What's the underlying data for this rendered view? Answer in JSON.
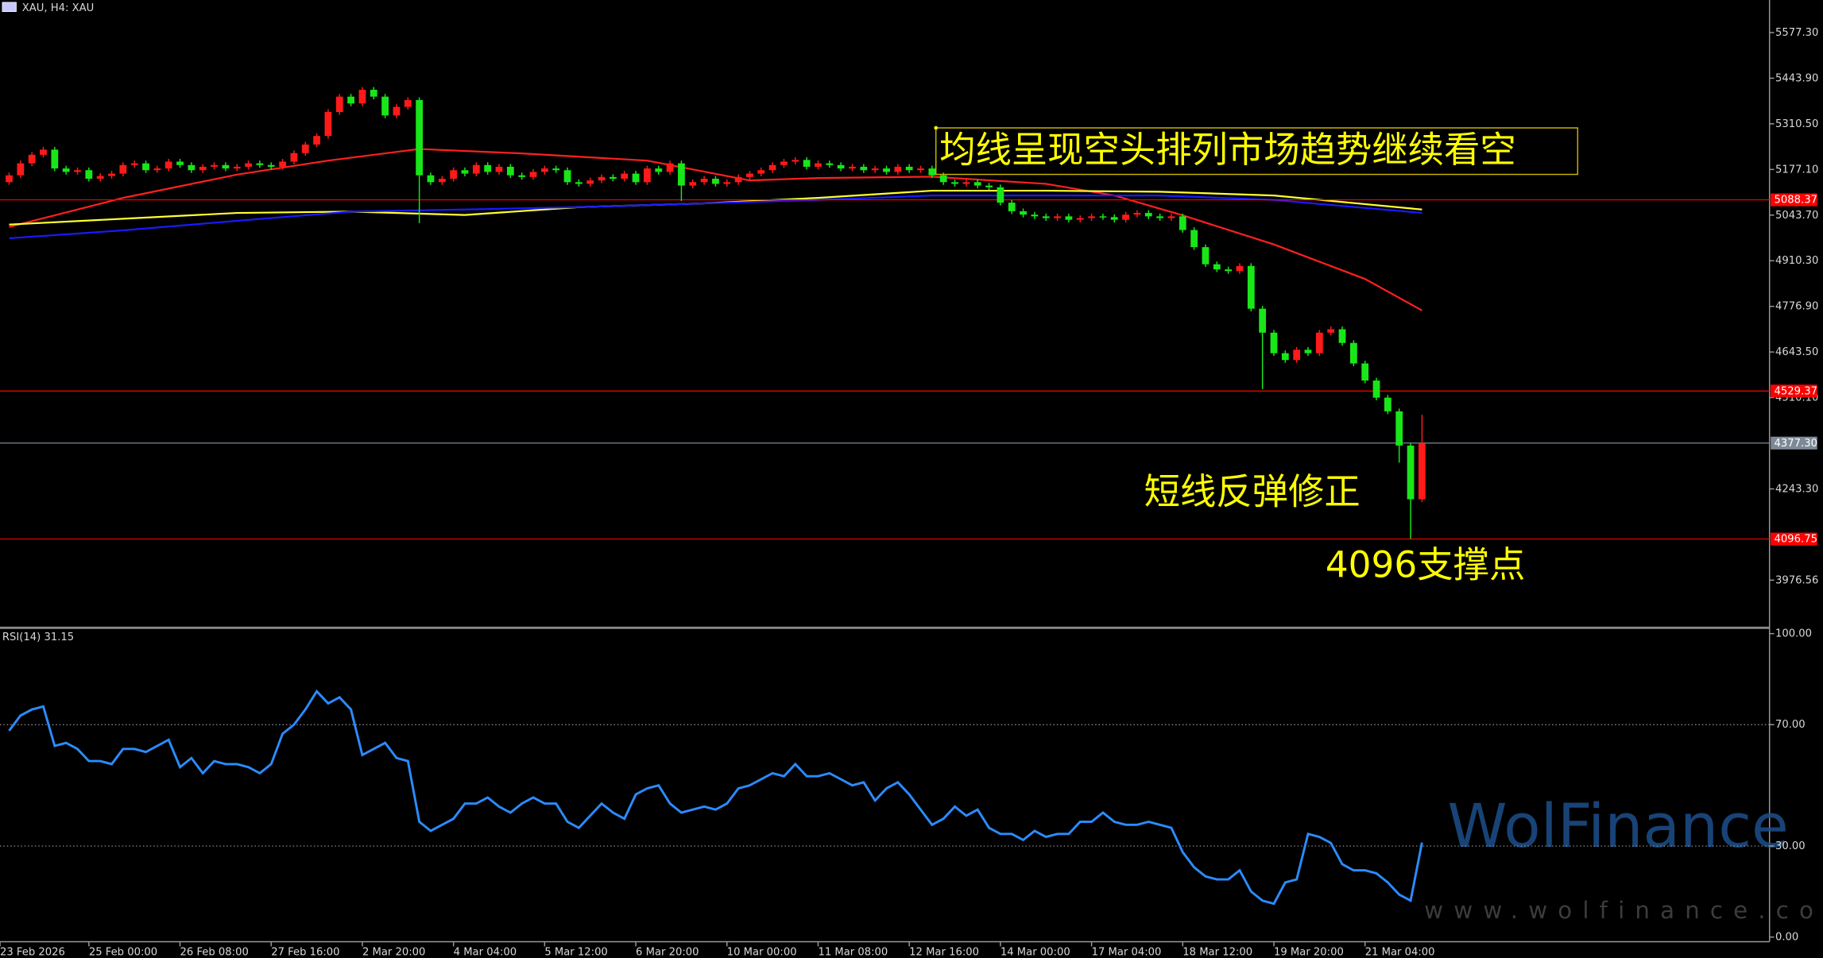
{
  "chart_data": [
    {
      "type": "candlestick",
      "title": "XAU, H4: XAU",
      "up_color": "#ff1a1a",
      "down_color": "#19e619",
      "open": [
        5140,
        5160,
        5195,
        5220,
        5235,
        5180,
        5170,
        5175,
        5150,
        5158,
        5165,
        5190,
        5195,
        5175,
        5180,
        5200,
        5190,
        5175,
        5185,
        5190,
        5180,
        5185,
        5195,
        5190,
        5185,
        5200,
        5225,
        5250,
        5275,
        5345,
        5390,
        5370,
        5410,
        5390,
        5335,
        5360,
        5380,
        5160,
        5140,
        5150,
        5175,
        5165,
        5190,
        5170,
        5185,
        5160,
        5155,
        5170,
        5180,
        5175,
        5140,
        5135,
        5145,
        5155,
        5150,
        5165,
        5140,
        5180,
        5170,
        5195,
        5130,
        5140,
        5150,
        5135,
        5140,
        5155,
        5165,
        5175,
        5190,
        5200,
        5205,
        5185,
        5195,
        5190,
        5180,
        5185,
        5175,
        5180,
        5170,
        5185,
        5175,
        5180,
        5160,
        5140,
        5135,
        5140,
        5130,
        5125,
        5080,
        5055,
        5045,
        5040,
        5035,
        5040,
        5030,
        5035,
        5040,
        5038,
        5030,
        5045,
        5050,
        5040,
        5035,
        5040,
        5000,
        4950,
        4900,
        4885,
        4880,
        4895,
        4770,
        4700,
        4640,
        4620,
        4650,
        4640,
        4700,
        4710,
        4670,
        4610,
        4560,
        4510,
        4470,
        4370,
        4213
      ],
      "high": [
        5168,
        5203,
        5228,
        5243,
        5243,
        5188,
        5183,
        5183,
        5166,
        5173,
        5198,
        5203,
        5203,
        5188,
        5208,
        5208,
        5198,
        5193,
        5198,
        5198,
        5193,
        5203,
        5203,
        5198,
        5208,
        5233,
        5258,
        5283,
        5353,
        5398,
        5398,
        5418,
        5418,
        5398,
        5368,
        5388,
        5388,
        5168,
        5158,
        5183,
        5183,
        5198,
        5198,
        5193,
        5193,
        5168,
        5178,
        5188,
        5188,
        5183,
        5148,
        5153,
        5163,
        5163,
        5173,
        5173,
        5188,
        5188,
        5203,
        5203,
        5148,
        5158,
        5158,
        5148,
        5163,
        5173,
        5183,
        5198,
        5208,
        5213,
        5213,
        5203,
        5203,
        5198,
        5193,
        5193,
        5188,
        5188,
        5193,
        5193,
        5188,
        5188,
        5168,
        5148,
        5148,
        5148,
        5138,
        5133,
        5088,
        5063,
        5053,
        5048,
        5048,
        5048,
        5043,
        5048,
        5048,
        5046,
        5053,
        5058,
        5058,
        5048,
        5048,
        5048,
        5008,
        4958,
        4908,
        4893,
        4903,
        4903,
        4778,
        4708,
        4648,
        4658,
        4658,
        4708,
        4718,
        4718,
        4678,
        4618,
        4568,
        4518,
        4478,
        4378,
        4460
      ],
      "low": [
        5132,
        5152,
        5187,
        5212,
        5172,
        5162,
        5162,
        5142,
        5142,
        5150,
        5157,
        5182,
        5167,
        5167,
        5172,
        5182,
        5167,
        5167,
        5177,
        5172,
        5172,
        5177,
        5182,
        5177,
        5177,
        5192,
        5217,
        5242,
        5267,
        5337,
        5362,
        5362,
        5382,
        5327,
        5327,
        5352,
        5020,
        5132,
        5132,
        5142,
        5157,
        5157,
        5162,
        5162,
        5152,
        5147,
        5147,
        5162,
        5167,
        5132,
        5127,
        5127,
        5137,
        5142,
        5142,
        5132,
        5132,
        5162,
        5162,
        5085,
        5122,
        5132,
        5127,
        5127,
        5132,
        5147,
        5157,
        5167,
        5182,
        5192,
        5177,
        5177,
        5182,
        5172,
        5172,
        5167,
        5167,
        5162,
        5162,
        5167,
        5167,
        5152,
        5132,
        5127,
        5127,
        5122,
        5117,
        5072,
        5047,
        5037,
        5032,
        5027,
        5027,
        5022,
        5022,
        5027,
        5030,
        5022,
        5022,
        5037,
        5032,
        5027,
        5027,
        4992,
        4942,
        4892,
        4877,
        4872,
        4872,
        4762,
        4535,
        4632,
        4612,
        4612,
        4632,
        4632,
        4692,
        4662,
        4602,
        4552,
        4502,
        4462,
        4320,
        4098,
        4205
      ],
      "close": [
        5160,
        5195,
        5220,
        5235,
        5180,
        5170,
        5175,
        5150,
        5158,
        5165,
        5190,
        5195,
        5175,
        5180,
        5200,
        5190,
        5175,
        5185,
        5190,
        5180,
        5185,
        5195,
        5190,
        5185,
        5200,
        5225,
        5250,
        5275,
        5345,
        5390,
        5370,
        5410,
        5390,
        5335,
        5360,
        5380,
        5160,
        5140,
        5150,
        5175,
        5165,
        5190,
        5170,
        5185,
        5160,
        5155,
        5170,
        5180,
        5175,
        5140,
        5135,
        5145,
        5155,
        5150,
        5165,
        5140,
        5180,
        5170,
        5195,
        5130,
        5140,
        5150,
        5135,
        5140,
        5155,
        5165,
        5175,
        5190,
        5200,
        5205,
        5185,
        5195,
        5190,
        5180,
        5185,
        5175,
        5180,
        5170,
        5185,
        5175,
        5180,
        5160,
        5140,
        5135,
        5140,
        5130,
        5125,
        5080,
        5055,
        5045,
        5040,
        5035,
        5040,
        5030,
        5035,
        5040,
        5038,
        5030,
        5045,
        5050,
        5040,
        5035,
        5040,
        5000,
        4950,
        4900,
        4885,
        4880,
        4895,
        4770,
        4700,
        4640,
        4620,
        4650,
        4640,
        4700,
        4710,
        4670,
        4610,
        4560,
        4510,
        4470,
        4370,
        4213,
        4377
      ],
      "moving_averages": [
        {
          "color": "#ff2020",
          "x": [
            0,
            10,
            20,
            28,
            36,
            45,
            56,
            65,
            71,
            81,
            91,
            97,
            103,
            111,
            119,
            124
          ],
          "values": [
            5009,
            5094,
            5162,
            5203,
            5237,
            5224,
            5203,
            5145,
            5152,
            5156,
            5135,
            5101,
            5043,
            4958,
            4857,
            4765
          ]
        },
        {
          "color": "#ffff33",
          "x": [
            0,
            10,
            20,
            30,
            40,
            50,
            61,
            71,
            81,
            91,
            101,
            111,
            124
          ],
          "values": [
            5016,
            5033,
            5050,
            5054,
            5044,
            5067,
            5078,
            5094,
            5115,
            5115,
            5112,
            5101,
            5060
          ]
        },
        {
          "color": "#1a1aff",
          "x": [
            0,
            10,
            20,
            30,
            40,
            50,
            61,
            71,
            81,
            91,
            101,
            111,
            124
          ],
          "values": [
            4976,
            4999,
            5027,
            5054,
            5060,
            5067,
            5078,
            5088,
            5101,
            5101,
            5101,
            5088,
            5050
          ]
        }
      ],
      "hlines": [
        {
          "value": 5088.37,
          "color": "#ff0000"
        },
        {
          "value": 4529.37,
          "color": "#ff0000"
        },
        {
          "value": 4377.3,
          "label": "4377.30",
          "color": "#7d8996"
        },
        {
          "value": 4096.75,
          "color": "#ff0000"
        }
      ],
      "ylim": [
        3844,
        5672.5
      ],
      "yticks": [
        {
          "value": 5577.3,
          "label": "5577.30"
        },
        {
          "value": 5443.9,
          "label": "5443.90"
        },
        {
          "value": 5310.5,
          "label": "5310.50"
        },
        {
          "value": 5177.1,
          "label": "5177.10"
        },
        {
          "value": 5043.7,
          "label": "5043.70"
        },
        {
          "value": 4910.3,
          "label": "4910.30"
        },
        {
          "value": 4776.9,
          "label": "4776.90"
        },
        {
          "value": 4643.5,
          "label": "4643.50"
        },
        {
          "value": 4510.1,
          "label": "4510.10"
        },
        {
          "value": 4243.3,
          "label": "4243.30"
        },
        {
          "value": 3976.56,
          "label": "3976.56"
        }
      ],
      "xlim": [
        -0.8,
        154.5
      ],
      "xticks": [
        {
          "value": -1,
          "label": "23 Feb 2026"
        },
        {
          "value": 7,
          "label": "25 Feb 00:00"
        },
        {
          "value": 15,
          "label": "26 Feb 08:00"
        },
        {
          "value": 23,
          "label": "27 Feb 16:00"
        },
        {
          "value": 31,
          "label": "2 Mar 20:00"
        },
        {
          "value": 39,
          "label": "4 Mar 04:00"
        },
        {
          "value": 47,
          "label": "5 Mar 12:00"
        },
        {
          "value": 55,
          "label": "6 Mar 20:00"
        },
        {
          "value": 63,
          "label": "10 Mar 00:00"
        },
        {
          "value": 71,
          "label": "11 Mar 08:00"
        },
        {
          "value": 79,
          "label": "12 Mar 16:00"
        },
        {
          "value": 87,
          "label": "14 Mar 00:00"
        },
        {
          "value": 95,
          "label": "17 Mar 04:00"
        },
        {
          "value": 103,
          "label": "18 Mar 12:00"
        },
        {
          "value": 111,
          "label": "19 Mar 20:00"
        },
        {
          "value": 119,
          "label": "21 Mar 04:00"
        }
      ],
      "annotations": [
        "均线呈现空头排列市场趋势继续看空",
        "短线反弹修正",
        "4096支撑点"
      ]
    },
    {
      "type": "line",
      "name": "RSI(14)",
      "color": "#2b8cff",
      "values": [
        68,
        73,
        75,
        76,
        63,
        64,
        62,
        58,
        58,
        57,
        62,
        62,
        61,
        63,
        65,
        56,
        59,
        54,
        58,
        57,
        57,
        56,
        54,
        57,
        67,
        70,
        75,
        81,
        77,
        79,
        75,
        60,
        62,
        64,
        59,
        58,
        38,
        35,
        37,
        39,
        44,
        44,
        46,
        43,
        41,
        44,
        46,
        44,
        44,
        38,
        36,
        40,
        44,
        41,
        39,
        47,
        49,
        50,
        44,
        41,
        42,
        43,
        42,
        44,
        49,
        50,
        52,
        54,
        53,
        57,
        53,
        53,
        54,
        52,
        50,
        51,
        45,
        49,
        51,
        47,
        42,
        37,
        39,
        43,
        40,
        42,
        36,
        34,
        34,
        32,
        35,
        33,
        34,
        34,
        38,
        38,
        41,
        38,
        37,
        37,
        38,
        37,
        36,
        28,
        23,
        20,
        19,
        19,
        22,
        15,
        12,
        11,
        18,
        19,
        34,
        33,
        31,
        24,
        22,
        22,
        21,
        18,
        14,
        12,
        31.15
      ],
      "xlim": [
        -0.8,
        154.5
      ],
      "ylim": [
        0,
        100
      ],
      "yticks": [
        {
          "value": 100,
          "label": "100.00"
        },
        {
          "value": 70,
          "label": "70.00"
        },
        {
          "value": 30,
          "label": "30.00"
        },
        {
          "value": 0,
          "label": "0.00"
        }
      ],
      "levels": [
        70,
        30
      ]
    }
  ],
  "watermark": {
    "brand": "WolFinance",
    "url": "www.wolfinance.com"
  }
}
